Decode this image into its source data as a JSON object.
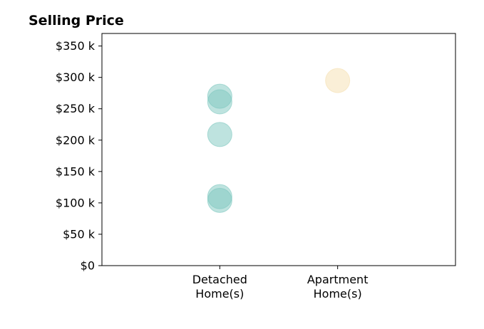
{
  "chart_data": {
    "type": "scatter",
    "title": "Selling Price",
    "xlabel": "",
    "ylabel": "",
    "categories": [
      "Detached\nHome(s)",
      "Apartment\nHome(s)"
    ],
    "ylim": [
      0,
      370000
    ],
    "xlim": [
      -1,
      2
    ],
    "yticks": [
      {
        "value": 0,
        "label": "$0"
      },
      {
        "value": 50000,
        "label": "$50 k"
      },
      {
        "value": 100000,
        "label": "$100 k"
      },
      {
        "value": 150000,
        "label": "$150 k"
      },
      {
        "value": 200000,
        "label": "$200 k"
      },
      {
        "value": 250000,
        "label": "$250 k"
      },
      {
        "value": 300000,
        "label": "$300 k"
      },
      {
        "value": 350000,
        "label": "$350 k"
      }
    ],
    "grid": false,
    "legend": "none",
    "series": [
      {
        "category_index": 0,
        "color": "#7ec8bf",
        "values": [
          270000,
          261000,
          209000,
          110000,
          104000
        ]
      },
      {
        "category_index": 1,
        "color": "#f5dfb0",
        "values": [
          295000
        ]
      }
    ]
  }
}
